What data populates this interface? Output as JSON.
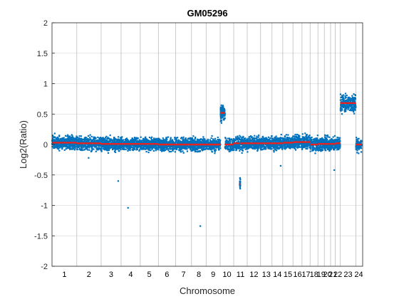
{
  "chart_data": {
    "type": "scatter",
    "title": "GM05296",
    "xlabel": "Chromosome",
    "ylabel": "Log2(Ratio)",
    "ylim": [
      -2,
      2
    ],
    "yticks": [
      2,
      1.5,
      1,
      0.5,
      0,
      -0.5,
      -1,
      -1.5,
      -2
    ],
    "grid": true,
    "colors": {
      "points": "#0072bd",
      "segments": "#e8231f",
      "grid": "#dedede",
      "axis": "#262626"
    },
    "x_domain": [
      0,
      3098
    ],
    "chromosomes": [
      {
        "name": "1",
        "length": 247,
        "segment_mean": 0.03
      },
      {
        "name": "2",
        "length": 243,
        "segment_mean": 0.02
      },
      {
        "name": "3",
        "length": 199,
        "segment_mean": 0.01
      },
      {
        "name": "4",
        "length": 191,
        "segment_mean": 0.01
      },
      {
        "name": "5",
        "length": 181,
        "segment_mean": 0.01
      },
      {
        "name": "6",
        "length": 171,
        "segment_mean": 0.0
      },
      {
        "name": "7",
        "length": 159,
        "segment_mean": 0.0
      },
      {
        "name": "8",
        "length": 146,
        "segment_mean": 0.0
      },
      {
        "name": "9",
        "length": 140,
        "segment_mean": 0.0
      },
      {
        "name": "10",
        "length": 135,
        "segment_mean": 0.0,
        "gain_region": {
          "start": 3,
          "end": 48,
          "mean": 0.52
        }
      },
      {
        "name": "11",
        "length": 135,
        "segment_mean": 0.02,
        "loss_region": {
          "start": 60,
          "end": 66,
          "mean": -0.65
        }
      },
      {
        "name": "12",
        "length": 133,
        "segment_mean": 0.02
      },
      {
        "name": "13",
        "length": 114,
        "segment_mean": 0.02
      },
      {
        "name": "14",
        "length": 107,
        "segment_mean": 0.02
      },
      {
        "name": "15",
        "length": 102,
        "segment_mean": 0.03
      },
      {
        "name": "16",
        "length": 90,
        "segment_mean": 0.04
      },
      {
        "name": "17",
        "length": 81,
        "segment_mean": 0.04
      },
      {
        "name": "18",
        "length": 78,
        "segment_mean": 0.0
      },
      {
        "name": "19",
        "length": 64,
        "segment_mean": 0.01
      },
      {
        "name": "20",
        "length": 62,
        "segment_mean": 0.01
      },
      {
        "name": "21",
        "length": 47,
        "segment_mean": 0.01
      },
      {
        "name": "22",
        "length": 50,
        "segment_mean": 0.02
      },
      {
        "name": "X",
        "length": 155,
        "segment_mean": 0.68
      },
      {
        "name": "Y",
        "length": 58,
        "segment_mean": 0.0
      }
    ],
    "tick_labels": [
      "1",
      "2",
      "3",
      "4",
      "5",
      "6",
      "7",
      "8",
      "9",
      "10",
      "11",
      "12",
      "13",
      "14",
      "15",
      "16",
      "17",
      "18",
      "19",
      "20",
      "21",
      "22",
      "23",
      "24"
    ],
    "outliers": [
      {
        "x": 660,
        "y": -0.6
      },
      {
        "x": 758,
        "y": -1.04
      },
      {
        "x": 1479,
        "y": -1.34
      },
      {
        "x": 2280,
        "y": -0.35
      },
      {
        "x": 2815,
        "y": -0.42
      },
      {
        "x": 365,
        "y": -0.22
      }
    ]
  }
}
